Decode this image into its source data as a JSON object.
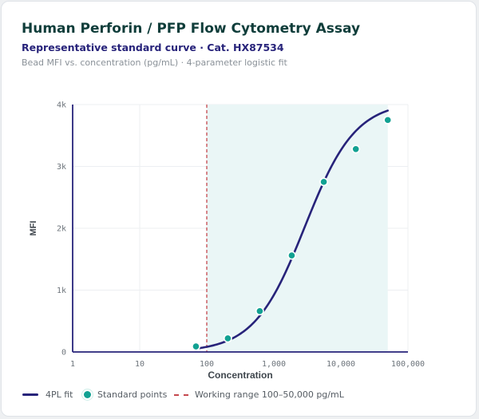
{
  "header": {
    "title": "Human Perforin / PFP Flow Cytometry Assay",
    "subtitle": "Representative standard curve · Cat. HX87534",
    "caption": "Bead MFI vs. concentration (pg/mL) · 4-parameter logistic fit"
  },
  "legend": {
    "fit_label": "4PL fit",
    "points_label": "Standard points",
    "range_label": "Working range 100–50,000 pg/mL"
  },
  "colors": {
    "curve": "#27237a",
    "points": "#12a192",
    "range_band": "#eaf6f6",
    "range_line": "#c5484e"
  },
  "chart_data": {
    "type": "scatter",
    "title": "",
    "xlabel": "Concentration",
    "ylabel": "MFI",
    "x_scale": "log",
    "xlim": [
      1,
      100000
    ],
    "ylim": [
      0,
      4000
    ],
    "x_ticks": [
      1,
      10,
      100,
      1000,
      10000,
      100000
    ],
    "x_tick_labels": [
      "1",
      "10",
      "100",
      "1,000",
      "10,000",
      "100,000"
    ],
    "y_ticks": [
      0,
      1000,
      2000,
      3000,
      4000
    ],
    "y_tick_labels": [
      "0",
      "1k",
      "2k",
      "3k",
      "4k"
    ],
    "grid": true,
    "legend_position": "bottom",
    "working_range": [
      100,
      50000
    ],
    "series": [
      {
        "name": "Standard points",
        "type": "scatter",
        "x": [
          69,
          206,
          617,
          1850,
          5560,
          16700,
          50000
        ],
        "y": [
          90,
          220,
          660,
          1560,
          2750,
          3280,
          3750
        ]
      },
      {
        "name": "4PL fit",
        "type": "line",
        "model": "4PL",
        "params": {
          "bottom": 0,
          "top": 4050,
          "ec50": 2900,
          "hill": 1.15
        },
        "x_range": [
          69,
          50000
        ]
      }
    ]
  }
}
